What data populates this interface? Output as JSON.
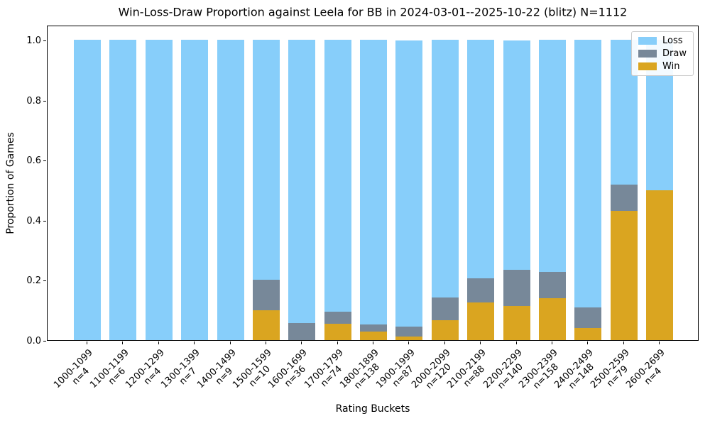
{
  "title": "Win-Loss-Draw Proportion against Leela for BB in 2024-03-01--2025-10-22 (blitz) N=1112",
  "chart_data": {
    "type": "bar",
    "stacked": true,
    "title": "Win-Loss-Draw Proportion against Leela for BB in 2024-03-01--2025-10-22 (blitz) N=1112",
    "xlabel": "Rating Buckets",
    "ylabel": "Proportion of Games",
    "total_games": 1112,
    "categories": [
      "1000-1099",
      "1100-1199",
      "1200-1299",
      "1300-1399",
      "1400-1499",
      "1500-1599",
      "1600-1699",
      "1700-1799",
      "1800-1899",
      "1900-1999",
      "2000-2099",
      "2100-2199",
      "2200-2299",
      "2300-2399",
      "2400-2499",
      "2500-2599",
      "2600-2699"
    ],
    "counts": [
      4,
      6,
      4,
      7,
      9,
      10,
      36,
      74,
      138,
      87,
      120,
      88,
      140,
      158,
      148,
      79,
      4
    ],
    "count_label_prefix": "n=",
    "series": [
      {
        "name": "Win",
        "color": "#DAA520",
        "values": [
          0.0,
          0.0,
          0.0,
          0.0,
          0.0,
          0.1,
          0.0,
          0.054,
          0.029,
          0.011,
          0.067,
          0.125,
          0.114,
          0.139,
          0.041,
          0.43,
          0.5
        ]
      },
      {
        "name": "Draw",
        "color": "#778899",
        "values": [
          0.0,
          0.0,
          0.0,
          0.0,
          0.0,
          0.1,
          0.056,
          0.041,
          0.022,
          0.034,
          0.075,
          0.08,
          0.121,
          0.089,
          0.068,
          0.089,
          0.0
        ]
      },
      {
        "name": "Loss",
        "color": "#87CEFA",
        "values": [
          1.0,
          1.0,
          1.0,
          1.0,
          1.0,
          0.8,
          0.944,
          0.905,
          0.949,
          0.954,
          0.858,
          0.795,
          0.764,
          0.772,
          0.892,
          0.481,
          0.5
        ]
      }
    ],
    "ylim": [
      0,
      1.05
    ],
    "yticks": [
      "0.0",
      "0.2",
      "0.4",
      "0.6",
      "0.8",
      "1.0"
    ],
    "grid": false,
    "legend": {
      "position": "upper right",
      "entries": [
        "Loss",
        "Draw",
        "Win"
      ]
    }
  }
}
